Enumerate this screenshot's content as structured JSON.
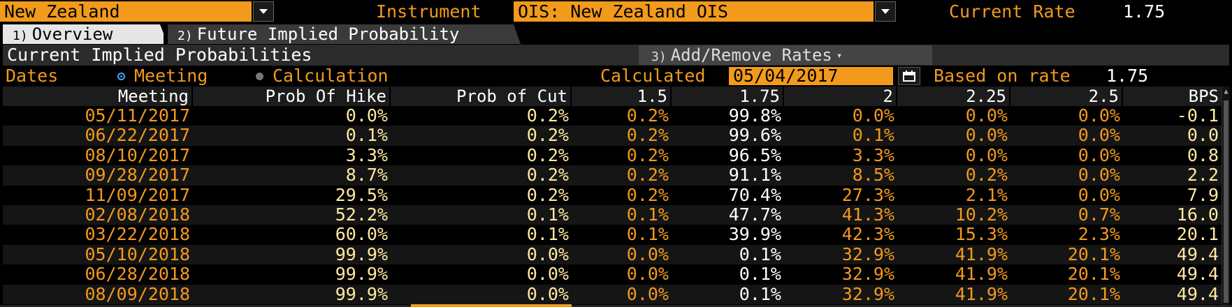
{
  "toolbar": {
    "country": "New Zealand",
    "instrument_label": "Instrument",
    "instrument_value": "OIS: New Zealand OIS",
    "current_rate_label": "Current Rate",
    "current_rate_value": "1.75"
  },
  "tabs": [
    {
      "num": "1)",
      "label": "Overview",
      "active": true
    },
    {
      "num": "2)",
      "label": "Future Implied Probability",
      "active": false
    }
  ],
  "section": {
    "title": "Current Implied Probabilities",
    "add_remove_num": "3)",
    "add_remove_label": "Add/Remove Rates"
  },
  "options": {
    "dates_label": "Dates",
    "radio_meeting": "Meeting",
    "radio_calculation": "Calculation",
    "selected": "Meeting",
    "calculated_label": "Calculated",
    "calculated_date": "05/04/2017",
    "based_on_label": "Based on rate",
    "based_on_value": "1.75"
  },
  "table": {
    "headers": [
      "Meeting",
      "Prob Of Hike",
      "Prob of Cut",
      "1.5",
      "1.75",
      "2",
      "2.25",
      "2.5",
      "BPS"
    ],
    "rows": [
      [
        "05/11/2017",
        "0.0%",
        "0.2%",
        "0.2%",
        "99.8%",
        "0.0%",
        "0.0%",
        "0.0%",
        "-0.1"
      ],
      [
        "06/22/2017",
        "0.1%",
        "0.2%",
        "0.2%",
        "99.6%",
        "0.1%",
        "0.0%",
        "0.0%",
        "0.0"
      ],
      [
        "08/10/2017",
        "3.3%",
        "0.2%",
        "0.2%",
        "96.5%",
        "3.3%",
        "0.0%",
        "0.0%",
        "0.8"
      ],
      [
        "09/28/2017",
        "8.7%",
        "0.2%",
        "0.2%",
        "91.1%",
        "8.5%",
        "0.2%",
        "0.0%",
        "2.2"
      ],
      [
        "11/09/2017",
        "29.5%",
        "0.2%",
        "0.2%",
        "70.4%",
        "27.3%",
        "2.1%",
        "0.0%",
        "7.9"
      ],
      [
        "02/08/2018",
        "52.2%",
        "0.1%",
        "0.1%",
        "47.7%",
        "41.3%",
        "10.2%",
        "0.7%",
        "16.0"
      ],
      [
        "03/22/2018",
        "60.0%",
        "0.1%",
        "0.1%",
        "39.9%",
        "42.3%",
        "15.3%",
        "2.3%",
        "20.1"
      ],
      [
        "05/10/2018",
        "99.9%",
        "0.0%",
        "0.0%",
        "0.1%",
        "32.9%",
        "41.9%",
        "20.1%",
        "49.4"
      ],
      [
        "06/28/2018",
        "99.9%",
        "0.0%",
        "0.0%",
        "0.1%",
        "32.9%",
        "41.9%",
        "20.1%",
        "49.4"
      ],
      [
        "08/09/2018",
        "99.9%",
        "0.0%",
        "0.0%",
        "0.1%",
        "32.9%",
        "41.9%",
        "20.1%",
        "49.4"
      ]
    ]
  },
  "colors": {
    "accent_orange": "#f29a1c",
    "value_white": "#ffffff",
    "value_light_yellow": "#ffe9a0",
    "background": "#000000"
  }
}
